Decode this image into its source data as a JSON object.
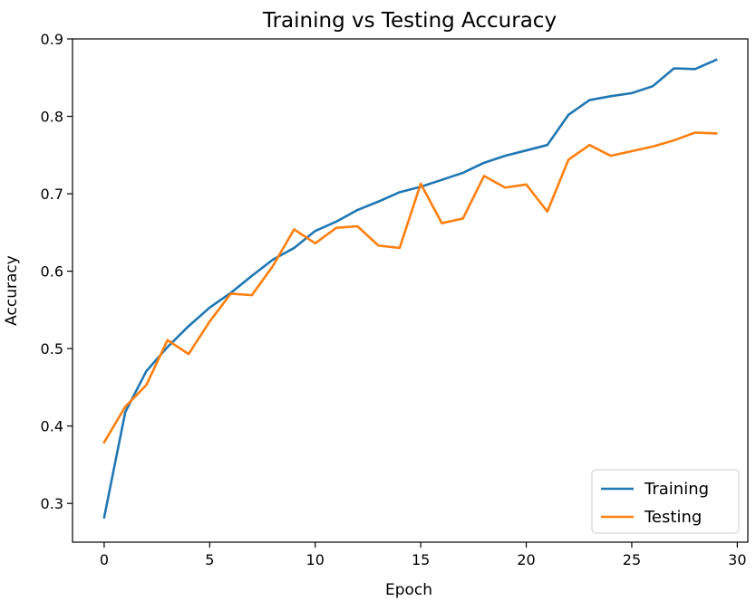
{
  "chart_data": {
    "type": "line",
    "title": "Training vs Testing Accuracy",
    "xlabel": "Epoch",
    "ylabel": "Accuracy",
    "xlim": [
      -1.5,
      30.5
    ],
    "ylim": [
      0.25,
      0.9
    ],
    "xticks": [
      0,
      5,
      10,
      15,
      20,
      25,
      30
    ],
    "yticks": [
      0.3,
      0.4,
      0.5,
      0.6,
      0.7,
      0.8,
      0.9
    ],
    "grid": false,
    "legend_position": "lower-right",
    "x": [
      0,
      1,
      2,
      3,
      4,
      5,
      6,
      7,
      8,
      9,
      10,
      11,
      12,
      13,
      14,
      15,
      16,
      17,
      18,
      19,
      20,
      21,
      22,
      23,
      24,
      25,
      26,
      27,
      28,
      29
    ],
    "series": [
      {
        "name": "Training",
        "color": "#1f77b4",
        "values": [
          0.282,
          0.418,
          0.471,
          0.502,
          0.529,
          0.553,
          0.572,
          0.594,
          0.615,
          0.63,
          0.652,
          0.664,
          0.679,
          0.69,
          0.702,
          0.709,
          0.718,
          0.727,
          0.74,
          0.749,
          0.756,
          0.763,
          0.802,
          0.821,
          0.826,
          0.83,
          0.839,
          0.862,
          0.861,
          0.873
        ]
      },
      {
        "name": "Testing",
        "color": "#ff7f0e",
        "values": [
          0.379,
          0.425,
          0.453,
          0.511,
          0.493,
          0.535,
          0.571,
          0.569,
          0.607,
          0.654,
          0.636,
          0.656,
          0.658,
          0.633,
          0.63,
          0.713,
          0.662,
          0.668,
          0.723,
          0.708,
          0.712,
          0.677,
          0.744,
          0.763,
          0.749,
          0.755,
          0.761,
          0.769,
          0.779,
          0.778
        ]
      }
    ]
  }
}
